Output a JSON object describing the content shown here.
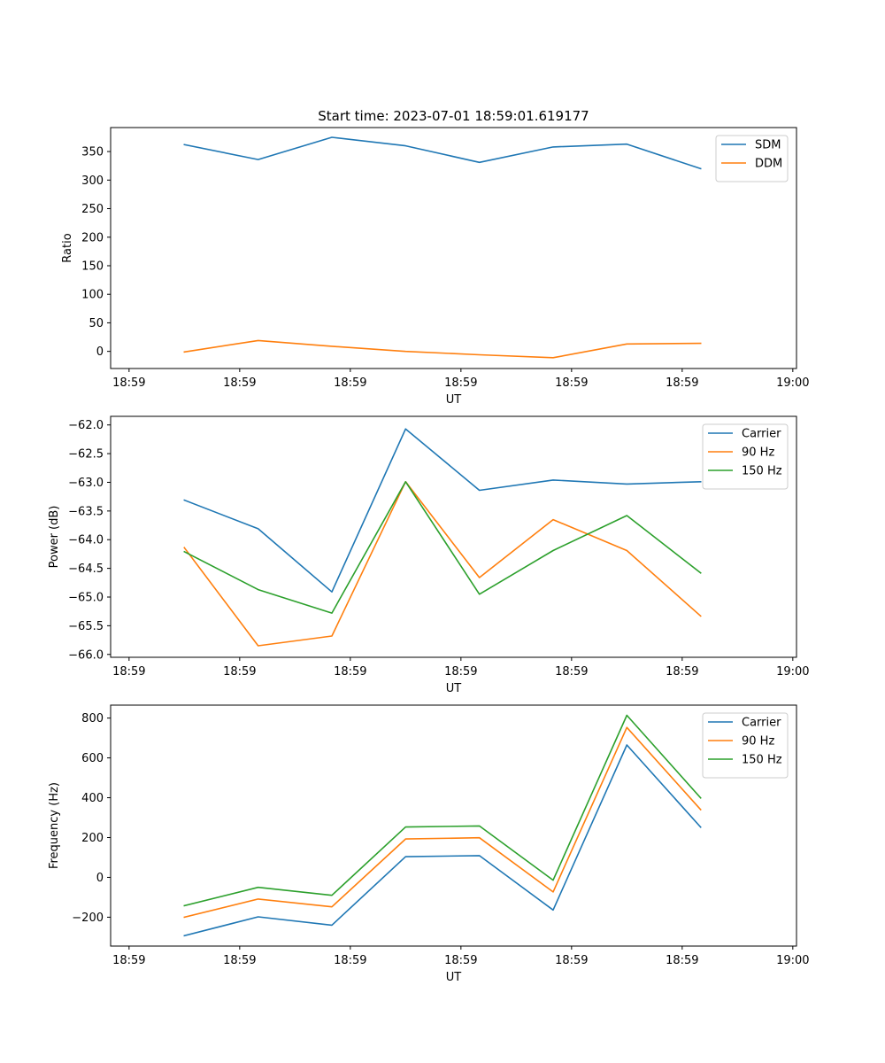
{
  "figure_title": "Start time: 2023-07-01 18:59:01.619177",
  "chart_data": [
    {
      "type": "line",
      "title": "Start time: 2023-07-01 18:59:01.619177",
      "xlabel": "UT",
      "ylabel": "Ratio",
      "xlim": [
        0,
        9.3
      ],
      "xticks": [
        0.25,
        1.75,
        3.25,
        4.75,
        6.25,
        7.75,
        9.25
      ],
      "xtick_labels": [
        "18:59",
        "18:59",
        "18:59",
        "18:59",
        "18:59",
        "18:59",
        "19:00"
      ],
      "ylim": [
        -30,
        392
      ],
      "yticks": [
        0,
        50,
        100,
        150,
        200,
        250,
        300,
        350
      ],
      "ytick_labels": [
        "0",
        "50",
        "100",
        "150",
        "200",
        "250",
        "300",
        "350"
      ],
      "legend": "top-right",
      "x": [
        1,
        2,
        3,
        4,
        5,
        6,
        7,
        8
      ],
      "series": [
        {
          "name": "SDM",
          "color": "#1f77b4",
          "values": [
            362,
            336,
            375,
            360,
            331,
            358,
            363,
            320
          ]
        },
        {
          "name": "DDM",
          "color": "#ff7f0e",
          "values": [
            -1,
            19,
            9,
            0,
            -6,
            -11,
            13,
            14
          ]
        }
      ]
    },
    {
      "type": "line",
      "title": "",
      "xlabel": "UT",
      "ylabel": "Power (dB)",
      "xlim": [
        0,
        9.3
      ],
      "xticks": [
        0.25,
        1.75,
        3.25,
        4.75,
        6.25,
        7.75,
        9.25
      ],
      "xtick_labels": [
        "18:59",
        "18:59",
        "18:59",
        "18:59",
        "18:59",
        "18:59",
        "19:00"
      ],
      "ylim": [
        -66.05,
        -61.85
      ],
      "yticks": [
        -66.0,
        -65.5,
        -65.0,
        -64.5,
        -64.0,
        -63.5,
        -63.0,
        -62.5,
        -62.0
      ],
      "ytick_labels": [
        "−66.0",
        "−65.5",
        "−65.0",
        "−64.5",
        "−64.0",
        "−63.5",
        "−63.0",
        "−62.5",
        "−62.0"
      ],
      "legend": "top-right",
      "x": [
        1,
        2,
        3,
        4,
        5,
        6,
        7,
        8
      ],
      "series": [
        {
          "name": "Carrier",
          "color": "#1f77b4",
          "values": [
            -63.31,
            -63.81,
            -64.91,
            -62.07,
            -63.14,
            -62.96,
            -63.03,
            -62.99
          ]
        },
        {
          "name": "90 Hz",
          "color": "#ff7f0e",
          "values": [
            -64.14,
            -65.85,
            -65.68,
            -62.99,
            -64.66,
            -63.65,
            -64.19,
            -65.33
          ]
        },
        {
          "name": "150 Hz",
          "color": "#2ca02c",
          "values": [
            -64.21,
            -64.87,
            -65.28,
            -62.99,
            -64.95,
            -64.19,
            -63.58,
            -64.58
          ]
        }
      ]
    },
    {
      "type": "line",
      "title": "",
      "xlabel": "UT",
      "ylabel": "Frequency (Hz)",
      "xlim": [
        0,
        9.3
      ],
      "xticks": [
        0.25,
        1.75,
        3.25,
        4.75,
        6.25,
        7.75,
        9.25
      ],
      "xtick_labels": [
        "18:59",
        "18:59",
        "18:59",
        "18:59",
        "18:59",
        "18:59",
        "19:00"
      ],
      "ylim": [
        -345,
        865
      ],
      "yticks": [
        -200,
        0,
        200,
        400,
        600,
        800
      ],
      "ytick_labels": [
        "−200",
        "0",
        "200",
        "400",
        "600",
        "800"
      ],
      "legend": "top-right",
      "x": [
        1,
        2,
        3,
        4,
        5,
        6,
        7,
        8
      ],
      "series": [
        {
          "name": "Carrier",
          "color": "#1f77b4",
          "values": [
            -293,
            -198,
            -240,
            104,
            109,
            -164,
            665,
            252
          ]
        },
        {
          "name": "90 Hz",
          "color": "#ff7f0e",
          "values": [
            -200,
            -109,
            -148,
            193,
            199,
            -73,
            753,
            340
          ]
        },
        {
          "name": "150 Hz",
          "color": "#2ca02c",
          "values": [
            -142,
            -50,
            -90,
            253,
            258,
            -14,
            814,
            399
          ]
        }
      ]
    }
  ]
}
